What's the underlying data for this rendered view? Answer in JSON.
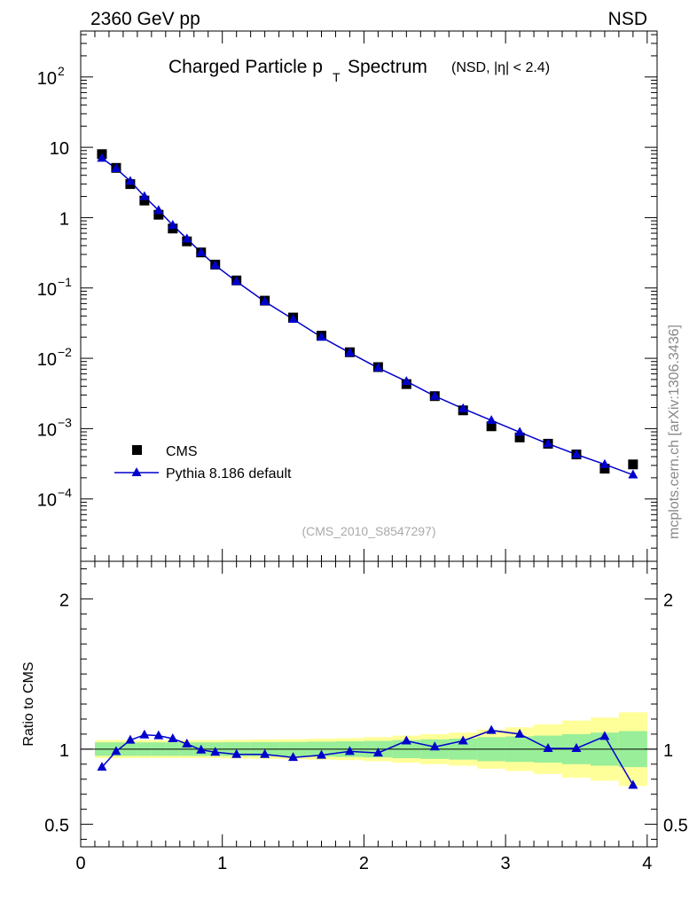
{
  "header": {
    "left_label": "2360 GeV pp",
    "right_label": "NSD"
  },
  "side_label": "mcplots.cern.ch [arXiv:1306.3436]",
  "chart_data": [
    {
      "type": "scatter",
      "title_main": "Charged Particle p",
      "title_sub": "T",
      "title_rest": " Spectrum",
      "title_extra": "(NSD, |η| < 2.4)",
      "watermark": "(CMS_2010_S8547297)",
      "yscale": "log",
      "xlim": [
        0,
        4.07
      ],
      "ylim": [
        1.3e-05,
        450
      ],
      "ytick_labels": [
        {
          "value": 100,
          "base": "10",
          "exp": "2"
        },
        {
          "value": 10,
          "base": "10",
          "exp": ""
        },
        {
          "value": 1,
          "base": "1",
          "exp": ""
        },
        {
          "value": 0.1,
          "base": "10",
          "exp": "−1"
        },
        {
          "value": 0.01,
          "base": "10",
          "exp": "−2"
        },
        {
          "value": 0.001,
          "base": "10",
          "exp": "−3"
        },
        {
          "value": 0.0001,
          "base": "10",
          "exp": "−4"
        }
      ],
      "legend": {
        "position": "bottom-left",
        "entries": [
          "CMS",
          "Pythia 8.186 default"
        ]
      },
      "series": [
        {
          "name": "CMS",
          "marker": "square",
          "color": "#000000",
          "x": [
            0.15,
            0.25,
            0.35,
            0.45,
            0.55,
            0.65,
            0.75,
            0.85,
            0.95,
            1.1,
            1.3,
            1.5,
            1.7,
            1.9,
            2.1,
            2.3,
            2.5,
            2.7,
            2.9,
            3.1,
            3.3,
            3.5,
            3.7,
            3.9
          ],
          "y": [
            8.0,
            5.1,
            3.0,
            1.75,
            1.1,
            0.7,
            0.46,
            0.32,
            0.215,
            0.128,
            0.066,
            0.038,
            0.021,
            0.0122,
            0.0075,
            0.0043,
            0.0029,
            0.00182,
            0.00108,
            0.00075,
            0.00061,
            0.00043,
            0.00027,
            0.00031
          ]
        },
        {
          "name": "Pythia 8.186 default",
          "marker": "triangle",
          "color": "#0000cc",
          "x": [
            0.15,
            0.25,
            0.35,
            0.45,
            0.55,
            0.65,
            0.75,
            0.85,
            0.95,
            1.1,
            1.3,
            1.5,
            1.7,
            1.9,
            2.1,
            2.3,
            2.5,
            2.7,
            2.9,
            3.1,
            3.3,
            3.5,
            3.7,
            3.9
          ],
          "y": [
            7.0,
            5.0,
            3.3,
            2.0,
            1.27,
            0.78,
            0.5,
            0.32,
            0.21,
            0.124,
            0.064,
            0.036,
            0.02,
            0.012,
            0.0073,
            0.0047,
            0.0029,
            0.00193,
            0.00131,
            0.00089,
            0.00061,
            0.00043,
            0.00031,
            0.00022
          ]
        }
      ]
    },
    {
      "type": "line",
      "ylabel": "Ratio to CMS",
      "xlim": [
        0,
        4.07
      ],
      "ylim": [
        0.35,
        2.25
      ],
      "xticks": [
        0,
        1,
        2,
        3,
        4
      ],
      "xtick_labels": [
        "0",
        "1",
        "2",
        "3",
        "4"
      ],
      "yticks": [
        0.5,
        1,
        2
      ],
      "ytick_labels": [
        "0.5",
        "1",
        "2"
      ],
      "bands": {
        "edges": [
          0.1,
          0.2,
          0.3,
          0.4,
          0.5,
          0.6,
          0.7,
          0.8,
          0.9,
          1.0,
          1.2,
          1.4,
          1.6,
          1.8,
          2.0,
          2.2,
          2.4,
          2.6,
          2.8,
          3.0,
          3.2,
          3.4,
          3.6,
          3.8,
          4.0
        ],
        "inner_halfwidth": [
          0.045,
          0.045,
          0.045,
          0.045,
          0.045,
          0.045,
          0.045,
          0.045,
          0.045,
          0.046,
          0.047,
          0.048,
          0.05,
          0.052,
          0.055,
          0.06,
          0.065,
          0.07,
          0.08,
          0.085,
          0.09,
          0.1,
          0.11,
          0.12
        ],
        "outer_halfwidth": [
          0.06,
          0.06,
          0.06,
          0.06,
          0.06,
          0.06,
          0.06,
          0.06,
          0.06,
          0.062,
          0.064,
          0.066,
          0.07,
          0.073,
          0.08,
          0.09,
          0.1,
          0.11,
          0.13,
          0.145,
          0.165,
          0.19,
          0.21,
          0.245
        ],
        "inner_color": "#99ee99",
        "outer_color": "#ffff99"
      },
      "series": [
        {
          "name": "Pythia 8.186 default",
          "marker": "triangle",
          "color": "#0000cc",
          "x": [
            0.15,
            0.25,
            0.35,
            0.45,
            0.55,
            0.65,
            0.75,
            0.85,
            0.95,
            1.1,
            1.3,
            1.5,
            1.7,
            1.9,
            2.1,
            2.3,
            2.5,
            2.7,
            2.9,
            3.1,
            3.3,
            3.5,
            3.7,
            3.9
          ],
          "y": [
            0.88,
            0.985,
            1.06,
            1.095,
            1.09,
            1.07,
            1.035,
            0.995,
            0.98,
            0.965,
            0.965,
            0.945,
            0.96,
            0.985,
            0.975,
            1.055,
            1.015,
            1.055,
            1.125,
            1.1,
            1.005,
            1.005,
            1.085,
            0.76
          ]
        }
      ]
    }
  ]
}
